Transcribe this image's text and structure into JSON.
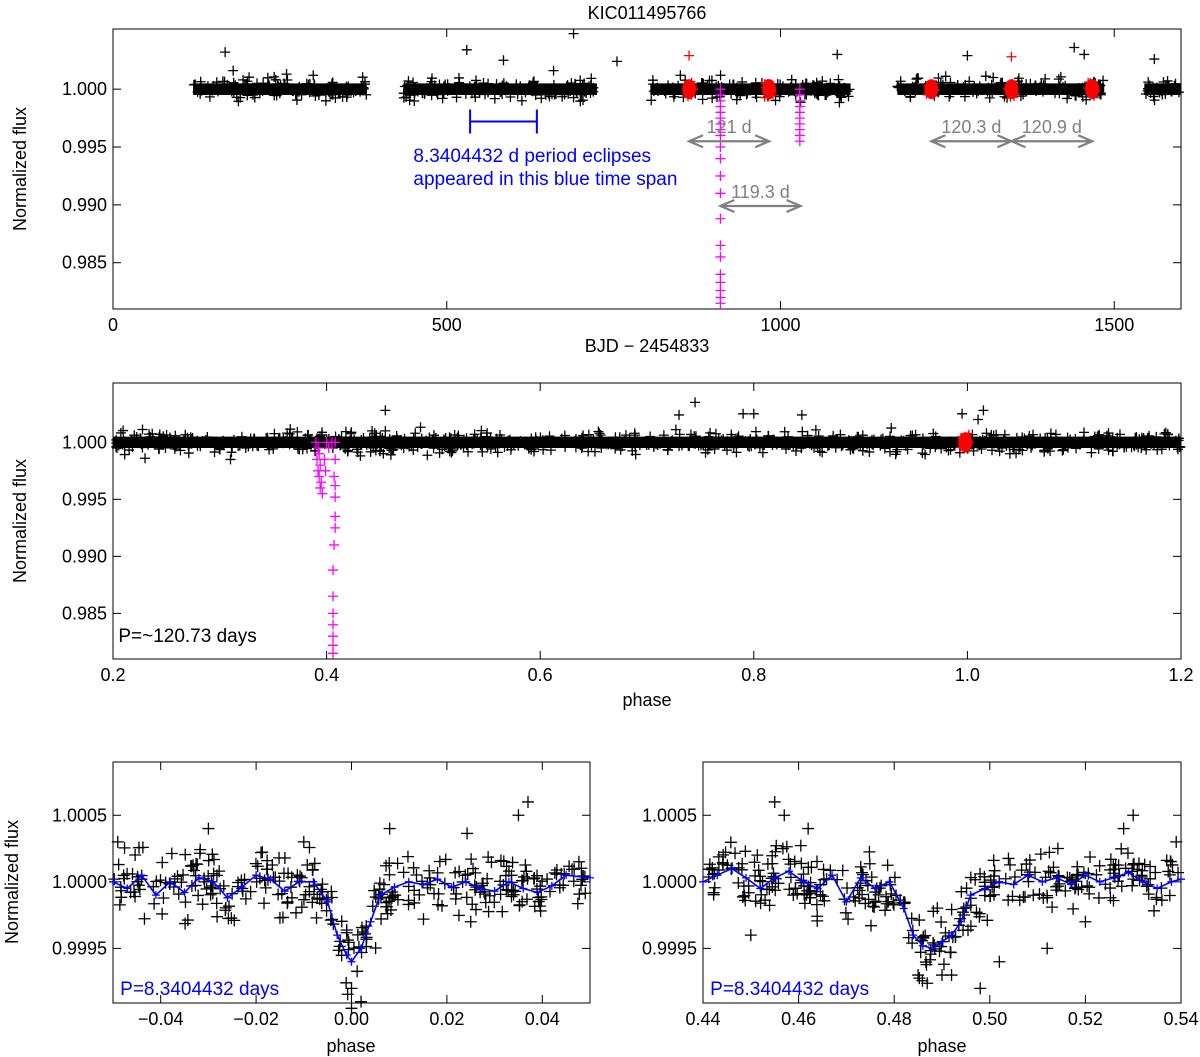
{
  "chart_data": [
    {
      "id": "top",
      "type": "scatter",
      "title": "KIC011495766",
      "xlabel": "BJD − 2454833",
      "ylabel": "Normalized flux",
      "xlim": [
        0,
        1600
      ],
      "ylim": [
        0.981,
        1.0052
      ],
      "xticks": [
        0,
        500,
        1000,
        1500
      ],
      "xtick_labels": [
        "0",
        "500",
        "1000",
        "1500"
      ],
      "yticks": [
        0.985,
        0.99,
        0.995,
        1.0
      ],
      "ytick_labels": [
        "0.985",
        "0.990",
        "0.995",
        "1.000"
      ],
      "grid": false,
      "series": [
        {
          "color": "#000000",
          "marker": "plus",
          "baseline": 1.0,
          "scatter": 0.0005,
          "segments": [
            [
              120,
              380
            ],
            [
              435,
              725
            ],
            [
              805,
              1105
            ],
            [
              1175,
              1485
            ],
            [
              1545,
              1600
            ]
          ],
          "outliers": [
            [
              168,
              1.0032
            ],
            [
              180,
              1.0016
            ],
            [
              260,
              1.0013
            ],
            [
              300,
              1.0012
            ],
            [
              530,
              1.0034
            ],
            [
              585,
              1.0025
            ],
            [
              660,
              1.0016
            ],
            [
              690,
              1.0048
            ],
            [
              755,
              1.0024
            ],
            [
              850,
              1.0012
            ],
            [
              1085,
              1.003
            ],
            [
              1280,
              1.0029
            ],
            [
              1440,
              1.0036
            ],
            [
              1455,
              1.003
            ],
            [
              1560,
              1.0026
            ]
          ]
        },
        {
          "color": "#ff0000",
          "marker": "plus",
          "points": [
            [
              863,
              1.0029
            ],
            [
              1346,
              1.0028
            ]
          ],
          "eclipse_centers": [
            863,
            983,
            1226,
            1346,
            1467
          ]
        },
        {
          "color": "#ff00ff",
          "marker": "plus",
          "points": [
            [
              910,
              1.0
            ],
            [
              910,
              0.9995
            ],
            [
              910,
              0.999
            ],
            [
              910,
              0.9985
            ],
            [
              910,
              0.998
            ],
            [
              910,
              0.9975
            ],
            [
              910,
              0.997
            ],
            [
              910,
              0.9965
            ],
            [
              910,
              0.996
            ],
            [
              910,
              0.995
            ],
            [
              910,
              0.994
            ],
            [
              910,
              0.9925
            ],
            [
              910,
              0.991
            ],
            [
              910,
              0.9888
            ],
            [
              910,
              0.9865
            ],
            [
              910,
              0.9855
            ],
            [
              910,
              0.984
            ],
            [
              910,
              0.9833
            ],
            [
              910,
              0.9826
            ],
            [
              910,
              0.982
            ],
            [
              910,
              0.9815
            ],
            [
              1029,
              1.0
            ],
            [
              1029,
              0.9995
            ],
            [
              1029,
              0.999
            ],
            [
              1029,
              0.9985
            ],
            [
              1029,
              0.998
            ],
            [
              1029,
              0.9975
            ],
            [
              1029,
              0.997
            ],
            [
              1029,
              0.9965
            ],
            [
              1029,
              0.996
            ],
            [
              1029,
              0.9955
            ]
          ]
        }
      ],
      "annotations": [
        {
          "id": "blue-span",
          "kind": "range",
          "color": "#0000ff",
          "x": [
            535,
            635
          ],
          "y": 0.9972
        },
        {
          "id": "blue-span-label-1",
          "kind": "text",
          "text": "8.3404432 d period eclipses",
          "color": "#0000ff",
          "x": 450,
          "y": 0.9937
        },
        {
          "id": "blue-span-label-2",
          "kind": "text",
          "text": "appeared in this blue time span",
          "color": "#0000ff",
          "x": 450,
          "y": 0.9917
        },
        {
          "id": "arrow-121",
          "kind": "double-arrow",
          "color": "#808080",
          "x": [
            863,
            983
          ],
          "y": 0.9955,
          "text": "121 d"
        },
        {
          "id": "arrow-119-3",
          "kind": "double-arrow",
          "color": "#808080",
          "x": [
            910,
            1030
          ],
          "y": 0.9899,
          "text": "119.3 d"
        },
        {
          "id": "arrow-120-3",
          "kind": "double-arrow",
          "color": "#808080",
          "x": [
            1226,
            1346
          ],
          "y": 0.9955,
          "text": "120.3 d"
        },
        {
          "id": "arrow-120-9",
          "kind": "double-arrow",
          "color": "#808080",
          "x": [
            1346,
            1467
          ],
          "y": 0.9955,
          "text": "120.9 d"
        }
      ]
    },
    {
      "id": "middle",
      "type": "scatter",
      "xlabel": "phase",
      "ylabel": "Normalized flux",
      "xlim": [
        0.2,
        1.2
      ],
      "ylim": [
        0.981,
        1.0052
      ],
      "xticks": [
        0.2,
        0.4,
        0.6,
        0.8,
        1.0,
        1.2
      ],
      "xtick_labels": [
        "0.2",
        "0.4",
        "0.6",
        "0.8",
        "1.0",
        "1.2"
      ],
      "yticks": [
        0.985,
        0.99,
        0.995,
        1.0
      ],
      "ytick_labels": [
        "0.985",
        "0.990",
        "0.995",
        "1.000"
      ],
      "grid": false,
      "series": [
        {
          "color": "#000000",
          "marker": "plus",
          "baseline": 1.0,
          "scatter": 0.0005,
          "segments": [
            [
              0.2,
              1.2
            ]
          ],
          "outliers": [
            [
              0.23,
              0.9986
            ],
            [
              0.31,
              0.9985
            ],
            [
              0.455,
              1.0028
            ],
            [
              0.73,
              1.0024
            ],
            [
              0.745,
              1.0035
            ],
            [
              0.79,
              1.0025
            ],
            [
              0.8,
              1.0025
            ],
            [
              0.845,
              1.0024
            ],
            [
              0.995,
              1.0025
            ],
            [
              1.015,
              1.0028
            ],
            [
              1.01,
              1.002
            ]
          ]
        },
        {
          "color": "#ff0000",
          "marker": "plus",
          "points": [],
          "eclipse_centers": [
            0.998
          ]
        },
        {
          "color": "#ff00ff",
          "marker": "plus",
          "points": [
            [
              0.39,
              1.0
            ],
            [
              0.392,
              0.9995
            ],
            [
              0.393,
              0.999
            ],
            [
              0.391,
              0.9985
            ],
            [
              0.394,
              0.998
            ],
            [
              0.392,
              0.9975
            ],
            [
              0.393,
              0.997
            ],
            [
              0.395,
              0.9965
            ],
            [
              0.394,
              0.996
            ],
            [
              0.396,
              0.9955
            ],
            [
              0.398,
              0.9985
            ],
            [
              0.399,
              0.9975
            ],
            [
              0.4,
              1.0
            ],
            [
              0.402,
              0.9995
            ],
            [
              0.405,
              1.0
            ],
            [
              0.408,
              1.0
            ],
            [
              0.408,
              0.9985
            ],
            [
              0.407,
              0.997
            ],
            [
              0.408,
              0.9962
            ],
            [
              0.408,
              0.9952
            ],
            [
              0.408,
              0.9935
            ],
            [
              0.408,
              0.9925
            ],
            [
              0.407,
              0.991
            ],
            [
              0.406,
              0.9888
            ],
            [
              0.406,
              0.9865
            ],
            [
              0.406,
              0.985
            ],
            [
              0.406,
              0.984
            ],
            [
              0.406,
              0.983
            ],
            [
              0.406,
              0.9822
            ],
            [
              0.406,
              0.9815
            ]
          ]
        }
      ],
      "annotations": [
        {
          "id": "period-label",
          "kind": "text",
          "text": "P=~120.73 days",
          "color": "#000000",
          "x": 0.205,
          "y": 0.9825
        }
      ]
    },
    {
      "id": "bottom-left",
      "type": "scatter",
      "xlabel": "phase",
      "ylabel": "Normalized flux",
      "xlim": [
        -0.05,
        0.05
      ],
      "ylim": [
        0.99909,
        1.0009
      ],
      "xticks": [
        -0.04,
        -0.02,
        0.0,
        0.02,
        0.04
      ],
      "xtick_labels": [
        "−0.04",
        "−0.02",
        "0.00",
        "0.02",
        "0.04"
      ],
      "yticks": [
        0.9995,
        1.0,
        1.0005
      ],
      "ytick_labels": [
        "0.9995",
        "1.0000",
        "1.0005"
      ],
      "grid": false,
      "binned_model": {
        "color": "#0000ff",
        "points": [
          [
            -0.05,
            1.0
          ],
          [
            -0.047,
            0.99995
          ],
          [
            -0.044,
            1.00005
          ],
          [
            -0.041,
            0.9999
          ],
          [
            -0.038,
            1.0
          ],
          [
            -0.035,
            0.99992
          ],
          [
            -0.032,
            1.00003
          ],
          [
            -0.029,
            1.0
          ],
          [
            -0.026,
            0.99988
          ],
          [
            -0.023,
            0.99996
          ],
          [
            -0.02,
            1.00005
          ],
          [
            -0.017,
            1.00002
          ],
          [
            -0.014,
            0.99993
          ],
          [
            -0.011,
            1.0
          ],
          [
            -0.008,
            1.0
          ],
          [
            -0.005,
            0.99985
          ],
          [
            -0.003,
            0.9996
          ],
          [
            -0.001,
            0.99945
          ],
          [
            0.0,
            0.9994
          ],
          [
            0.002,
            0.9995
          ],
          [
            0.004,
            0.9997
          ],
          [
            0.006,
            0.9999
          ],
          [
            0.009,
            0.99996
          ],
          [
            0.012,
            1.0
          ],
          [
            0.015,
            0.99998
          ],
          [
            0.018,
            1.00002
          ],
          [
            0.021,
            0.99996
          ],
          [
            0.024,
            1.0
          ],
          [
            0.027,
            0.99995
          ],
          [
            0.03,
            0.99993
          ],
          [
            0.033,
            1.0
          ],
          [
            0.036,
            0.99995
          ],
          [
            0.039,
            0.99992
          ],
          [
            0.042,
            0.99997
          ],
          [
            0.045,
            1.00005
          ],
          [
            0.05,
            1.00003
          ]
        ]
      },
      "series": [
        {
          "color": "#000000",
          "marker": "plus",
          "scatter": 0.00015,
          "count": 330,
          "outliers": [
            [
              -0.049,
              1.0003
            ],
            [
              -0.03,
              1.0004
            ],
            [
              -0.01,
              1.0003
            ],
            [
              0.0,
              0.9992
            ],
            [
              0.0,
              0.99905
            ],
            [
              0.002,
              0.9991
            ],
            [
              0.008,
              1.0004
            ],
            [
              0.035,
              1.0005
            ],
            [
              0.037,
              1.0006
            ],
            [
              0.025,
              0.9997
            ]
          ]
        }
      ],
      "annotations": [
        {
          "id": "period-label-left",
          "kind": "text",
          "text": "P=8.3404432 days",
          "color": "#0000ff",
          "x": -0.0485,
          "y": 0.99915
        }
      ]
    },
    {
      "id": "bottom-right",
      "type": "scatter",
      "xlabel": "phase",
      "ylabel": "",
      "xlim": [
        0.44,
        0.54
      ],
      "ylim": [
        0.99909,
        1.0009
      ],
      "xticks": [
        0.44,
        0.46,
        0.48,
        0.5,
        0.52,
        0.54
      ],
      "xtick_labels": [
        "0.44",
        "0.46",
        "0.48",
        "0.50",
        "0.52",
        "0.54"
      ],
      "yticks": [
        0.9995,
        1.0,
        1.0005
      ],
      "ytick_labels": [
        "0.9995",
        "1.0000",
        "1.0005"
      ],
      "grid": false,
      "binned_model": {
        "color": "#0000ff",
        "points": [
          [
            0.44,
            1.0
          ],
          [
            0.443,
            1.00005
          ],
          [
            0.446,
            1.0001
          ],
          [
            0.449,
            1.00003
          ],
          [
            0.452,
            0.99995
          ],
          [
            0.455,
            1.00003
          ],
          [
            0.458,
            1.00008
          ],
          [
            0.461,
            1.0
          ],
          [
            0.464,
            0.99995
          ],
          [
            0.467,
            1.00005
          ],
          [
            0.47,
            0.99985
          ],
          [
            0.473,
            1.00003
          ],
          [
            0.476,
            0.99995
          ],
          [
            0.479,
            1.0
          ],
          [
            0.482,
            0.9998
          ],
          [
            0.484,
            0.9996
          ],
          [
            0.486,
            0.99952
          ],
          [
            0.488,
            0.9995
          ],
          [
            0.49,
            0.99955
          ],
          [
            0.492,
            0.9996
          ],
          [
            0.494,
            0.9997
          ],
          [
            0.496,
            0.9999
          ],
          [
            0.499,
            0.99995
          ],
          [
            0.502,
            1.0
          ],
          [
            0.505,
            0.99998
          ],
          [
            0.508,
            1.00005
          ],
          [
            0.511,
            1.0
          ],
          [
            0.514,
            1.00003
          ],
          [
            0.517,
            0.99998
          ],
          [
            0.52,
            1.00005
          ],
          [
            0.523,
            1.0
          ],
          [
            0.526,
            1.00003
          ],
          [
            0.529,
            1.00007
          ],
          [
            0.532,
            1.0
          ],
          [
            0.535,
            0.99995
          ],
          [
            0.538,
            1.0
          ],
          [
            0.54,
            1.00002
          ]
        ]
      },
      "series": [
        {
          "color": "#000000",
          "marker": "plus",
          "scatter": 0.00015,
          "count": 330,
          "outliers": [
            [
              0.455,
              1.0006
            ],
            [
              0.457,
              1.0005
            ],
            [
              0.462,
              1.0004
            ],
            [
              0.45,
              0.9996
            ],
            [
              0.485,
              0.9993
            ],
            [
              0.49,
              0.9993
            ],
            [
              0.492,
              0.9993
            ],
            [
              0.498,
              0.9992
            ],
            [
              0.502,
              0.9994
            ],
            [
              0.512,
              0.9995
            ],
            [
              0.528,
              1.0004
            ],
            [
              0.53,
              1.0005
            ],
            [
              0.539,
              1.0003
            ],
            [
              0.52,
              0.9997
            ]
          ]
        }
      ],
      "annotations": [
        {
          "id": "period-label-right",
          "kind": "text",
          "text": "P=8.3404432 days",
          "color": "#0000ff",
          "x": 0.4415,
          "y": 0.99915
        }
      ]
    }
  ]
}
